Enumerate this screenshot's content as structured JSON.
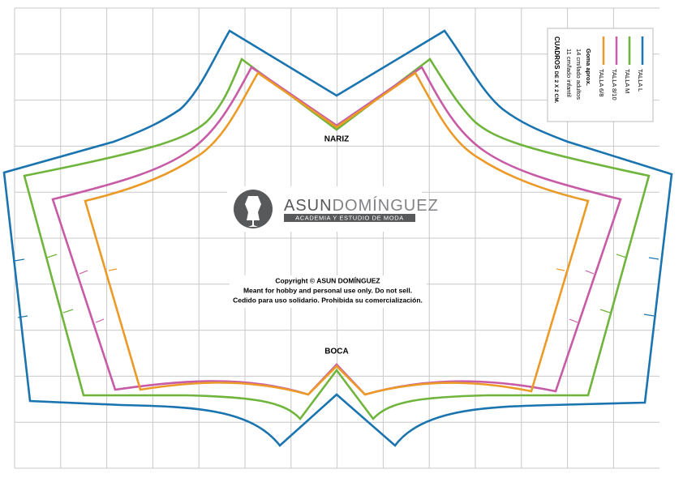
{
  "labels": {
    "nose": "NARIZ",
    "mouth": "BOCA"
  },
  "logo": {
    "name": [
      "ASUN",
      "DOMÍNGUEZ"
    ],
    "tagline": "ACADEMIA Y ESTUDIO DE MODA"
  },
  "copyright": [
    "Copyright © ASUN DOMÍNGUEZ",
    "Meant for hobby and personal use only. Do not sell.",
    "Cedido para uso solidario. Prohibida su comercialización."
  ],
  "legend": {
    "items": [
      {
        "label": "TALLA L",
        "color": "#1a74b0"
      },
      {
        "label": "TALLA M",
        "color": "#6fb53c"
      },
      {
        "label": "TALLA 8/10",
        "color": "#c85ba6"
      },
      {
        "label": "TALLA 6/8",
        "color": "#ec9a27"
      }
    ],
    "notes": [
      "Goma aprox.",
      "14 cm/lado adultos",
      "11 cm/lado infantil"
    ],
    "grid_note": [
      "CUADROS",
      "DE 2 X 2 CM."
    ]
  }
}
